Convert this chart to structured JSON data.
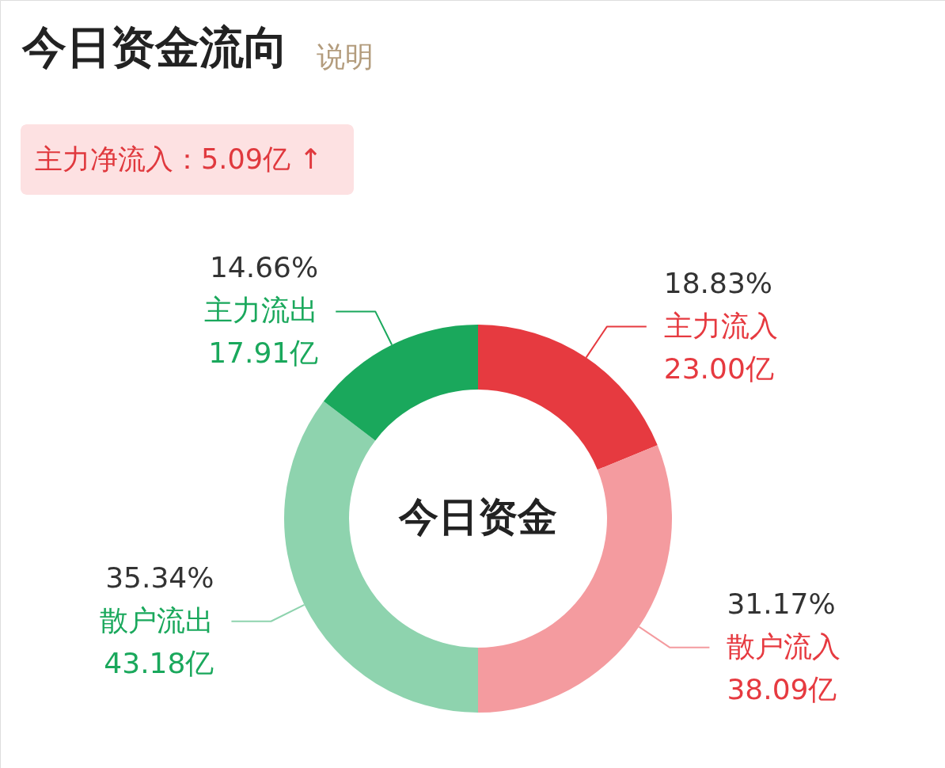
{
  "chart_data": {
    "type": "donut",
    "title": "今日资金流向",
    "categories": [
      "主力流入",
      "散户流入",
      "散户流出",
      "主力流出"
    ],
    "values": [
      23.0,
      38.09,
      43.18,
      17.91
    ],
    "colors": [
      "#e63a40",
      "#f49b9f",
      "#8ed3ae",
      "#1aa85c"
    ],
    "value_labels": [
      "23.00亿",
      "38.09亿",
      "43.18亿",
      "17.91亿"
    ],
    "annotations": [
      "说明",
      "主力净流入：5.09亿 ↑",
      "今日资金",
      {
        "text": "18.83%",
        "x": "主力流入"
      },
      {
        "text": "31.17%",
        "x": "散户流入"
      },
      {
        "text": "35.34%",
        "x": "散户流出"
      },
      {
        "text": "14.66%",
        "x": "主力流出"
      }
    ]
  }
}
